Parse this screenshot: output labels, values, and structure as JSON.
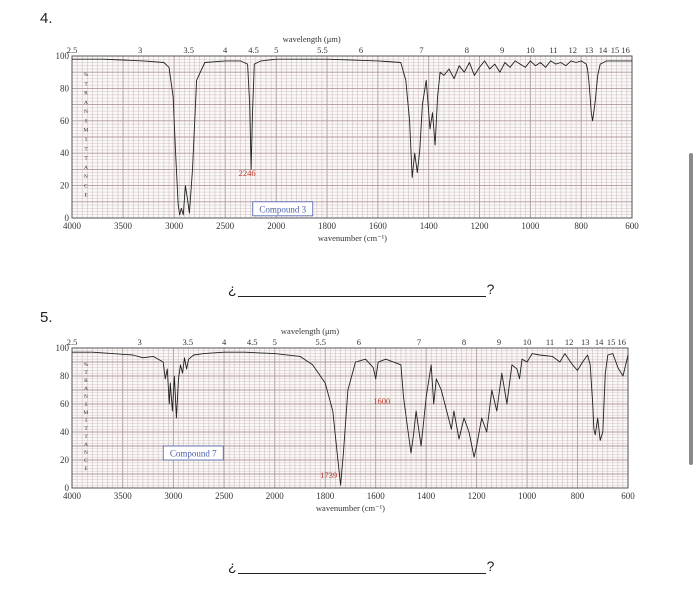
{
  "questions": [
    {
      "number": "4.",
      "answer_prefix": "¿",
      "answer_suffix": "?"
    },
    {
      "number": "5.",
      "answer_prefix": "¿",
      "answer_suffix": "?"
    }
  ],
  "colors": {
    "grid": "#c9b8b8",
    "grid_major": "#b09a9a",
    "frame": "#555555",
    "spectrum": "#222222",
    "label_red": "#c0392b",
    "label_box": "#4a5ea8"
  },
  "chart_data": [
    {
      "type": "line",
      "title": "",
      "top_axis_label": "wavelength (μm)",
      "xlabel": "wavenumber (cm⁻¹)",
      "ylabel_letters": "%TRANSMITTANCE",
      "xlim": [
        4000,
        600
      ],
      "ylim": [
        0,
        100
      ],
      "grid": true,
      "x_ticks": [
        "4000",
        "3500",
        "3000",
        "2500",
        "2000",
        "1800",
        "1600",
        "1400",
        "1200",
        "1000",
        "800",
        "600"
      ],
      "y_ticks": [
        "0",
        "20",
        "40",
        "60",
        "80",
        "100"
      ],
      "top_ticks": [
        "2.5",
        "3",
        "3.5",
        "4",
        "4.5",
        "5",
        "5.5",
        "6",
        "7",
        "8",
        "9",
        "10",
        "11",
        "12",
        "13",
        "14",
        "15",
        "16"
      ],
      "compound_label": "Compound 3",
      "peak_label": {
        "text": "2246",
        "x": 2246
      },
      "series": [
        {
          "x": [
            4000,
            3700,
            3300,
            3100,
            3050,
            3010,
            2985,
            2960,
            2945,
            2930,
            2910,
            2890,
            2870,
            2850,
            2820,
            2780,
            2700,
            2500,
            2350,
            2280,
            2260,
            2246,
            2232,
            2215,
            2150,
            2000,
            1800,
            1600,
            1510,
            1490,
            1475,
            1465,
            1455,
            1445,
            1435,
            1425,
            1410,
            1395,
            1385,
            1375,
            1365,
            1355,
            1340,
            1320,
            1300,
            1280,
            1260,
            1240,
            1220,
            1200,
            1180,
            1160,
            1140,
            1120,
            1100,
            1080,
            1060,
            1040,
            1020,
            1000,
            980,
            960,
            940,
            920,
            900,
            880,
            860,
            840,
            820,
            800,
            780,
            775,
            770,
            765,
            760,
            755,
            745,
            735,
            725,
            700,
            650,
            600
          ],
          "y": [
            98,
            98,
            97,
            96,
            93,
            75,
            40,
            8,
            2,
            6,
            2,
            20,
            12,
            3,
            30,
            85,
            96,
            97,
            97,
            95,
            70,
            30,
            65,
            95,
            97,
            98,
            98,
            97,
            96,
            85,
            60,
            25,
            40,
            28,
            42,
            70,
            85,
            55,
            65,
            45,
            75,
            90,
            88,
            92,
            86,
            94,
            90,
            96,
            88,
            93,
            97,
            92,
            95,
            90,
            96,
            93,
            97,
            95,
            93,
            97,
            94,
            96,
            93,
            97,
            95,
            96,
            94,
            97,
            96,
            97,
            95,
            92,
            85,
            75,
            65,
            60,
            72,
            88,
            95,
            97,
            97,
            97
          ]
        }
      ]
    },
    {
      "type": "line",
      "title": "",
      "top_axis_label": "wavelength (μm)",
      "xlabel": "wavenumber (cm⁻¹)",
      "ylabel_letters": "%TRANSMITTANCE",
      "xlim": [
        4000,
        600
      ],
      "ylim": [
        0,
        100
      ],
      "grid": true,
      "x_ticks": [
        "4000",
        "3500",
        "3000",
        "2500",
        "2000",
        "1800",
        "1600",
        "1400",
        "1200",
        "1000",
        "800",
        "600"
      ],
      "y_ticks": [
        "0",
        "20",
        "40",
        "60",
        "80",
        "100"
      ],
      "top_ticks": [
        "2.5",
        "3",
        "3.5",
        "4",
        "4.5",
        "5",
        "5.5",
        "6",
        "7",
        "8",
        "9",
        "10",
        "11",
        "12",
        "13",
        "14",
        "15",
        "16"
      ],
      "compound_label": "Compound 7",
      "peak_labels": [
        {
          "text": "1600",
          "x": 1600
        },
        {
          "text": "1739",
          "x": 1739
        }
      ],
      "series": [
        {
          "x": [
            4000,
            3800,
            3600,
            3400,
            3300,
            3200,
            3100,
            3080,
            3060,
            3040,
            3030,
            3010,
            2990,
            2970,
            2950,
            2930,
            2910,
            2890,
            2870,
            2850,
            2800,
            2700,
            2500,
            2300,
            2000,
            1900,
            1850,
            1800,
            1770,
            1750,
            1739,
            1728,
            1710,
            1680,
            1640,
            1610,
            1600,
            1590,
            1560,
            1500,
            1490,
            1475,
            1460,
            1450,
            1440,
            1420,
            1400,
            1380,
            1370,
            1360,
            1340,
            1320,
            1300,
            1290,
            1270,
            1250,
            1230,
            1210,
            1200,
            1180,
            1160,
            1140,
            1120,
            1100,
            1080,
            1060,
            1040,
            1030,
            1020,
            1000,
            980,
            950,
            900,
            870,
            850,
            820,
            800,
            780,
            760,
            750,
            740,
            735,
            730,
            720,
            710,
            700,
            690,
            680,
            660,
            640,
            620,
            600
          ],
          "y": [
            97,
            97,
            96,
            95,
            93,
            94,
            90,
            78,
            85,
            60,
            75,
            55,
            80,
            50,
            78,
            88,
            82,
            93,
            85,
            92,
            95,
            96,
            97,
            97,
            96,
            94,
            88,
            75,
            55,
            20,
            2,
            25,
            70,
            90,
            92,
            86,
            78,
            90,
            92,
            88,
            65,
            45,
            25,
            38,
            55,
            30,
            65,
            88,
            60,
            78,
            70,
            56,
            42,
            55,
            35,
            50,
            40,
            22,
            30,
            50,
            40,
            70,
            55,
            82,
            60,
            88,
            85,
            78,
            92,
            90,
            96,
            95,
            94,
            90,
            96,
            88,
            84,
            90,
            95,
            88,
            60,
            42,
            38,
            50,
            34,
            40,
            82,
            95,
            96,
            86,
            80,
            95
          ]
        }
      ]
    }
  ]
}
